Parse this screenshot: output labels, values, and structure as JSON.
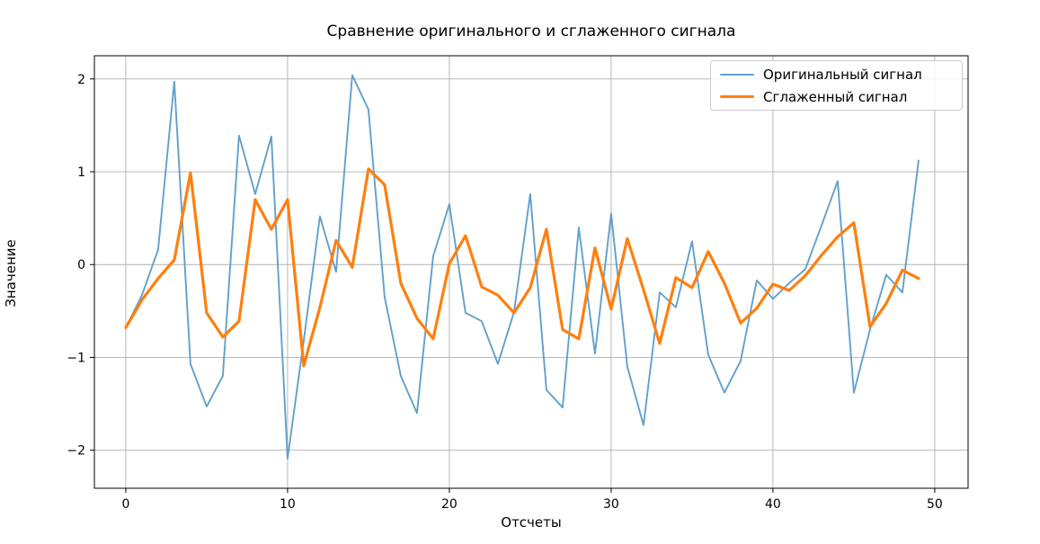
{
  "chart_data": {
    "type": "line",
    "title": "Сравнение оригинального и сглаженного сигнала",
    "xlabel": "Отсчеты",
    "ylabel": "Значение",
    "grid": true,
    "legend_position": "upper right",
    "xticks": [
      0,
      10,
      20,
      30,
      40,
      50
    ],
    "yticks": [
      -2,
      -1,
      0,
      1,
      2
    ],
    "xlim": [
      -1.94,
      52.06
    ],
    "ylim": [
      -2.41,
      2.25
    ],
    "x": [
      0,
      1,
      2,
      3,
      4,
      5,
      6,
      7,
      8,
      9,
      10,
      11,
      12,
      13,
      14,
      15,
      16,
      17,
      18,
      19,
      20,
      21,
      22,
      23,
      24,
      25,
      26,
      27,
      28,
      29,
      30,
      31,
      32,
      33,
      34,
      35,
      36,
      37,
      38,
      39,
      40,
      41,
      42,
      43,
      44,
      45,
      46,
      47,
      48,
      49
    ],
    "series": [
      {
        "name": "Оригинальный сигнал",
        "color": "#62a0cb",
        "line_width": 1.9,
        "values": [
          -0.68,
          -0.33,
          0.16,
          1.97,
          -1.07,
          -1.53,
          -1.2,
          1.39,
          0.76,
          1.38,
          -2.09,
          -0.82,
          0.52,
          -0.08,
          2.04,
          1.67,
          -0.35,
          -1.2,
          -1.6,
          0.09,
          0.65,
          -0.52,
          -0.61,
          -1.07,
          -0.51,
          0.76,
          -1.35,
          -1.54,
          0.4,
          -0.96,
          0.55,
          -1.1,
          -1.73,
          -0.3,
          -0.46,
          0.25,
          -0.97,
          -1.38,
          -1.04,
          -0.17,
          -0.37,
          -0.2,
          -0.05,
          0.42,
          0.9,
          -1.38,
          -0.7,
          -0.11,
          -0.3,
          1.12
        ]
      },
      {
        "name": "Сглаженный сигнал",
        "color": "#ff7f0e",
        "line_width": 3.2,
        "values": [
          -0.68,
          -0.38,
          -0.15,
          0.05,
          0.99,
          -0.52,
          -0.78,
          -0.61,
          0.7,
          0.38,
          0.7,
          -1.09,
          -0.46,
          0.26,
          -0.03,
          1.03,
          0.86,
          -0.2,
          -0.58,
          -0.8,
          0.01,
          0.31,
          -0.24,
          -0.33,
          -0.52,
          -0.25,
          0.38,
          -0.7,
          -0.8,
          0.18,
          -0.48,
          0.28,
          -0.27,
          -0.85,
          -0.14,
          -0.25,
          0.14,
          -0.2,
          -0.63,
          -0.47,
          -0.21,
          -0.28,
          -0.12,
          0.1,
          0.3,
          0.45,
          -0.67,
          -0.42,
          -0.06,
          -0.15
        ]
      }
    ],
    "grid_color": "#b0b0b0",
    "spine_color": "#000000",
    "tick_label_color": "#000000"
  }
}
